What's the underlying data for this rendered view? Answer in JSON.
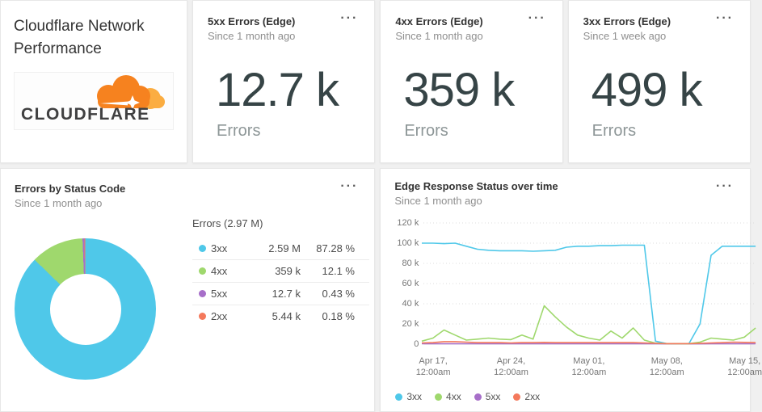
{
  "icons": {
    "ellipsis_menu": "···"
  },
  "palette": {
    "status_3xx": "#4fc8e9",
    "status_4xx": "#9fd86d",
    "status_5xx": "#a76fc9",
    "status_2xx": "#f4795c",
    "cloudflare_orange": "#f6821f",
    "cloudflare_light_orange": "#fbad41"
  },
  "title_card": {
    "title": "Cloudflare Network Performance",
    "logo_text": "CLOUDFLARE"
  },
  "stat_cards": [
    {
      "title": "5xx Errors (Edge)",
      "subtitle": "Since 1 month ago",
      "value": "12.7 k",
      "unit": "Errors"
    },
    {
      "title": "4xx Errors (Edge)",
      "subtitle": "Since 1 month ago",
      "value": "359 k",
      "unit": "Errors"
    },
    {
      "title": "3xx Errors (Edge)",
      "subtitle": "Since 1 week ago",
      "value": "499 k",
      "unit": "Errors"
    }
  ],
  "donut_card": {
    "title": "Errors by Status Code",
    "subtitle": "Since 1 month ago"
  },
  "timeseries_card": {
    "title": "Edge Response Status over time",
    "subtitle": "Since 1 month ago"
  },
  "chart_data": [
    {
      "type": "pie",
      "title": "Errors by Status Code",
      "legend_title": "Errors (2.97 M)",
      "donut_hole_pct": 50,
      "segments": [
        {
          "label": "3xx",
          "value": 2590000,
          "value_label": "2.59 M",
          "pct": 87.28,
          "pct_label": "87.28 %",
          "color": "#4fc8e9"
        },
        {
          "label": "4xx",
          "value": 359000,
          "value_label": "359 k",
          "pct": 12.1,
          "pct_label": "12.1 %",
          "color": "#9fd86d"
        },
        {
          "label": "5xx",
          "value": 12700,
          "value_label": "12.7 k",
          "pct": 0.43,
          "pct_label": "0.43 %",
          "color": "#a76fc9"
        },
        {
          "label": "2xx",
          "value": 5440,
          "value_label": "5.44 k",
          "pct": 0.18,
          "pct_label": "0.18 %",
          "color": "#f4795c"
        }
      ]
    },
    {
      "type": "line",
      "title": "Edge Response Status over time",
      "unit": "k",
      "ylim": [
        0,
        120
      ],
      "grid": "dotted horizontal",
      "legend_position": "bottom-left",
      "x_start": "Apr 16, 12:00am",
      "x_end": "May 16, 12:00am",
      "yticks": [
        {
          "label": "120 k",
          "v": 120
        },
        {
          "label": "100 k",
          "v": 100
        },
        {
          "label": "80 k",
          "v": 80
        },
        {
          "label": "60 k",
          "v": 60
        },
        {
          "label": "40 k",
          "v": 40
        },
        {
          "label": "20 k",
          "v": 20
        },
        {
          "label": "0",
          "v": 0
        }
      ],
      "xticks": [
        {
          "line1": "Apr 17,",
          "line2": "12:00am",
          "day": 1
        },
        {
          "line1": "Apr 24,",
          "line2": "12:00am",
          "day": 8
        },
        {
          "line1": "May 01,",
          "line2": "12:00am",
          "day": 15
        },
        {
          "line1": "May 08,",
          "line2": "12:00am",
          "day": 22
        },
        {
          "line1": "May 15,",
          "line2": "12:00am",
          "day": 29
        }
      ],
      "series": [
        {
          "name": "3xx",
          "color": "#4fc8e9",
          "values_k": [
            100,
            100,
            99.5,
            100,
            97,
            94,
            93,
            92.5,
            92.5,
            92.5,
            92,
            92.5,
            93,
            96,
            97,
            97,
            97.5,
            97.5,
            98,
            98,
            98,
            3,
            0.6,
            0.4,
            0.4,
            20,
            88,
            97,
            97,
            97,
            97
          ]
        },
        {
          "name": "4xx",
          "color": "#9fd86d",
          "values_k": [
            3,
            6,
            14,
            9,
            4,
            5,
            6,
            5,
            4.5,
            9,
            5,
            38,
            27,
            17,
            9,
            6,
            4,
            13,
            6,
            16,
            4,
            1,
            0.6,
            0.5,
            0.5,
            2,
            6,
            5,
            4,
            7,
            16
          ]
        },
        {
          "name": "5xx",
          "color": "#a76fc9",
          "values_k": [
            0.4,
            0.4,
            0.4,
            0.4,
            0.4,
            0.4,
            0.4,
            0.4,
            0.4,
            0.4,
            0.4,
            0.4,
            0.4,
            0.4,
            0.4,
            0.4,
            0.4,
            0.4,
            0.4,
            0.4,
            0.4,
            0.4,
            0.3,
            0.3,
            0.3,
            0.3,
            0.4,
            0.4,
            0.4,
            0.4,
            0.4
          ]
        },
        {
          "name": "2xx",
          "color": "#f4795c",
          "values_k": [
            1.2,
            1.5,
            2.5,
            2.5,
            2,
            1.5,
            1.5,
            1.5,
            1.2,
            1.5,
            1.5,
            1.8,
            1.5,
            1.5,
            1.5,
            1.5,
            1.5,
            1.5,
            1.5,
            1.5,
            1.2,
            0.8,
            0.5,
            0.5,
            0.5,
            0.8,
            1.2,
            1.5,
            2,
            1.8,
            1.5
          ]
        }
      ],
      "draw_order": [
        "5xx",
        "3xx",
        "4xx",
        "2xx"
      ]
    }
  ]
}
